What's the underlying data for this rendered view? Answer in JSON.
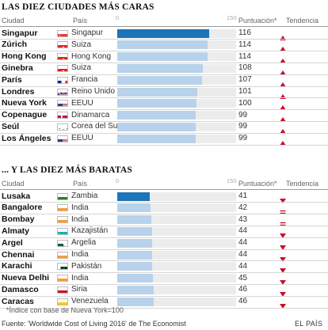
{
  "sections": [
    {
      "title": "LAS DIEZ CIUDADES MÁS CARAS",
      "headers": {
        "city": "Ciudad",
        "country": "País",
        "score": "Puntuación*",
        "trend": "Tendencia",
        "tick_min": "0",
        "tick_max": "150"
      },
      "rows": [
        {
          "city": "Singapur",
          "country": "Singapur",
          "flag": "singapore-flag",
          "score": 116,
          "trend": "up"
        },
        {
          "city": "Zúrich",
          "country": "Suiza",
          "flag": "switzerland-flag",
          "score": 114,
          "trend": "up"
        },
        {
          "city": "Hong Kong",
          "country": "Hong Kong",
          "flag": "hongkong-flag",
          "score": 114,
          "trend": "up"
        },
        {
          "city": "Ginebra",
          "country": "Suiza",
          "flag": "switzerland-flag",
          "score": 108,
          "trend": "up"
        },
        {
          "city": "París",
          "country": "Francia",
          "flag": "france-flag",
          "score": 107,
          "trend": "up"
        },
        {
          "city": "Londres",
          "country": "Reino Unido",
          "flag": "uk-flag",
          "score": 101,
          "trend": "up"
        },
        {
          "city": "Nueva York",
          "country": "EEUU",
          "flag": "usa-flag",
          "score": 100,
          "trend": "up"
        },
        {
          "city": "Copenague",
          "country": "Dinamarca",
          "flag": "denmark-flag",
          "score": 99,
          "trend": "up"
        },
        {
          "city": "Seúl",
          "country": "Corea del Sur",
          "flag": "southkorea-flag",
          "score": 99,
          "trend": "up"
        },
        {
          "city": "Los Ángeles",
          "country": "EEUU",
          "flag": "usa-flag",
          "score": 99,
          "trend": "up"
        }
      ]
    },
    {
      "title": "... Y LAS DIEZ MÁS BARATAS",
      "headers": {
        "city": "Ciudad",
        "country": "País",
        "score": "Puntuación*",
        "trend": "Tendencia",
        "tick_min": "0",
        "tick_max": "150"
      },
      "rows": [
        {
          "city": "Lusaka",
          "country": "Zambia",
          "flag": "zambia-flag",
          "score": 41,
          "trend": "down"
        },
        {
          "city": "Bangalore",
          "country": "India",
          "flag": "india-flag",
          "score": 42,
          "trend": "equal"
        },
        {
          "city": "Bombay",
          "country": "India",
          "flag": "india-flag",
          "score": 43,
          "trend": "equal"
        },
        {
          "city": "Almaty",
          "country": "Kazajistán",
          "flag": "kazakhstan-flag",
          "score": 44,
          "trend": "down"
        },
        {
          "city": "Argel",
          "country": "Argelia",
          "flag": "algeria-flag",
          "score": 44,
          "trend": "down"
        },
        {
          "city": "Chennai",
          "country": "India",
          "flag": "india-flag",
          "score": 44,
          "trend": "down"
        },
        {
          "city": "Karachi",
          "country": "Pakistán",
          "flag": "pakistan-flag",
          "score": 44,
          "trend": "down"
        },
        {
          "city": "Nueva Delhi",
          "country": "India",
          "flag": "india-flag",
          "score": 45,
          "trend": "down"
        },
        {
          "city": "Damasco",
          "country": "Siria",
          "flag": "syria-flag",
          "score": 46,
          "trend": "down"
        },
        {
          "city": "Caracas",
          "country": "Venezuela",
          "flag": "venezuela-flag",
          "score": 46,
          "trend": "down"
        }
      ]
    }
  ],
  "footnote": "*Índice con base de Nueva York=100",
  "source": "Fuente: 'Worldwide Cost of Living 2016' de The Economist",
  "credit": "EL PAÍS",
  "colors": {
    "highlight_bar": "#1d74b7",
    "bar": "#b7d2ea",
    "bar_bg": "#ececec",
    "trend": "#c8102e"
  },
  "chart_data": [
    {
      "type": "bar",
      "title": "LAS DIEZ CIUDADES MÁS CARAS",
      "categories": [
        "Singapur",
        "Zúrich",
        "Hong Kong",
        "Ginebra",
        "París",
        "Londres",
        "Nueva York",
        "Copenague",
        "Seúl",
        "Los Ángeles"
      ],
      "values": [
        116,
        114,
        114,
        108,
        107,
        101,
        100,
        99,
        99,
        99
      ],
      "xlim": [
        0,
        150
      ],
      "ylabel": "Puntuación*"
    },
    {
      "type": "bar",
      "title": "... Y LAS DIEZ MÁS BARATAS",
      "categories": [
        "Lusaka",
        "Bangalore",
        "Bombay",
        "Almaty",
        "Argel",
        "Chennai",
        "Karachi",
        "Nueva Delhi",
        "Damasco",
        "Caracas"
      ],
      "values": [
        41,
        42,
        43,
        44,
        44,
        44,
        44,
        45,
        46,
        46
      ],
      "xlim": [
        0,
        150
      ],
      "ylabel": "Puntuación*"
    }
  ]
}
